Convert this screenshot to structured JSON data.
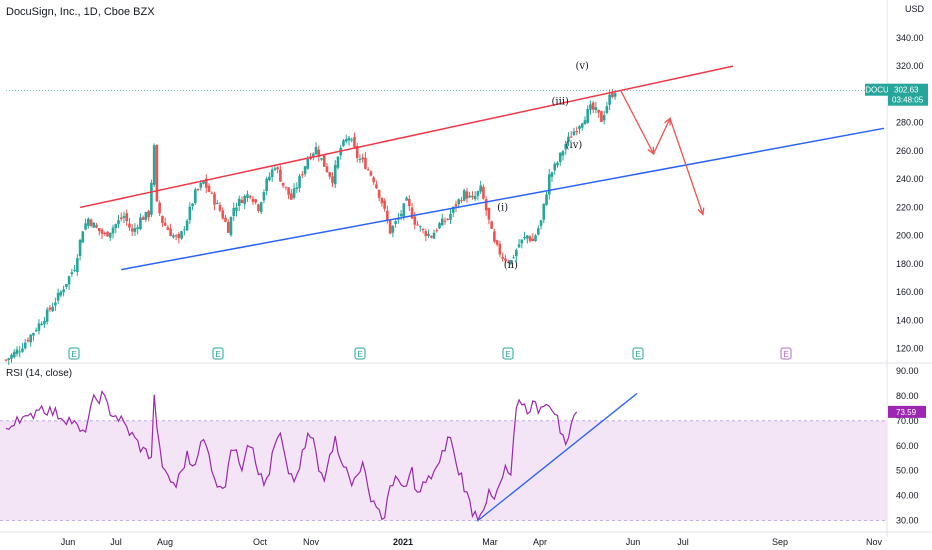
{
  "header": {
    "title": "DocuSign, Inc., 1D, Cboe BZX",
    "currency": "USD",
    "rsi_label": "RSI (14, close)"
  },
  "colors": {
    "up": "#26a69a",
    "down": "#ef5350",
    "upper_channel": "#f23645",
    "lower_channel": "#2962ff",
    "rsi_line": "#9c27b0",
    "rsi_band": "#f3e5f5",
    "price_badge": "#26a69a",
    "rsi_badge": "#9c27b0"
  },
  "chart_data": [
    {
      "type": "candlestick",
      "title": "DocuSign, Inc., 1D, Cboe BZX",
      "y_axis_ticks": [
        120,
        140,
        160,
        180,
        200,
        220,
        240,
        260,
        280,
        300,
        320,
        340
      ],
      "y_axis_tick_labels": [
        "120.00",
        "140.00",
        "160.00",
        "180.00",
        "200.00",
        "220.00",
        "240.00",
        "260.00",
        "280.00",
        "300.00",
        "320.00",
        "340.00"
      ],
      "ylim": [
        112,
        364
      ],
      "x_axis_ticks": [
        "Jun",
        "Jul",
        "Aug",
        "Oct",
        "Nov",
        "2021",
        "Mar",
        "Apr",
        "Jun",
        "Jul",
        "Sep",
        "Nov"
      ],
      "close_series": [
        [
          0,
          112
        ],
        [
          5,
          120
        ],
        [
          10,
          132
        ],
        [
          15,
          145
        ],
        [
          20,
          160
        ],
        [
          25,
          178
        ],
        [
          28,
          205
        ],
        [
          30,
          212
        ],
        [
          33,
          205
        ],
        [
          36,
          200
        ],
        [
          40,
          208
        ],
        [
          43,
          214
        ],
        [
          46,
          202
        ],
        [
          49,
          212
        ],
        [
          52,
          215
        ],
        [
          54,
          262
        ],
        [
          55,
          222
        ],
        [
          57,
          210
        ],
        [
          60,
          202
        ],
        [
          63,
          196
        ],
        [
          66,
          212
        ],
        [
          69,
          230
        ],
        [
          72,
          238
        ],
        [
          75,
          228
        ],
        [
          78,
          218
        ],
        [
          81,
          205
        ],
        [
          83,
          220
        ],
        [
          86,
          226
        ],
        [
          89,
          230
        ],
        [
          92,
          220
        ],
        [
          95,
          238
        ],
        [
          98,
          250
        ],
        [
          101,
          236
        ],
        [
          104,
          226
        ],
        [
          107,
          240
        ],
        [
          110,
          255
        ],
        [
          113,
          262
        ],
        [
          116,
          250
        ],
        [
          119,
          240
        ],
        [
          122,
          262
        ],
        [
          125,
          270
        ],
        [
          128,
          256
        ],
        [
          131,
          250
        ],
        [
          134,
          240
        ],
        [
          137,
          224
        ],
        [
          140,
          203
        ],
        [
          143,
          212
        ],
        [
          146,
          224
        ],
        [
          149,
          210
        ],
        [
          152,
          203
        ],
        [
          155,
          200
        ],
        [
          158,
          208
        ],
        [
          161,
          212
        ],
        [
          164,
          222
        ],
        [
          167,
          230
        ],
        [
          170,
          225
        ],
        [
          173,
          233
        ],
        [
          175,
          218
        ],
        [
          178,
          194
        ],
        [
          181,
          185
        ],
        [
          184,
          182
        ],
        [
          187,
          194
        ],
        [
          190,
          200
        ],
        [
          192,
          196
        ],
        [
          195,
          210
        ],
        [
          198,
          242
        ],
        [
          201,
          252
        ],
        [
          204,
          265
        ],
        [
          207,
          274
        ],
        [
          210,
          282
        ],
        [
          213,
          290
        ],
        [
          215,
          288
        ],
        [
          217,
          282
        ],
        [
          220,
          298
        ],
        [
          222,
          303
        ]
      ],
      "x_range": [
        0,
        320
      ],
      "last_price": "302.63",
      "ticker": "DOCU",
      "countdown": "03:48:05",
      "annotations": [
        "(i)",
        "(ii)",
        "(iii)",
        "(iv)",
        "(v)"
      ],
      "earnings_markers": [
        "E",
        "E",
        "E",
        "E",
        "E",
        "E"
      ],
      "lines": [
        {
          "name": "upper channel",
          "from": [
            27,
            220
          ],
          "to": [
            265,
            320
          ]
        },
        {
          "name": "lower channel",
          "from": [
            42,
            176
          ],
          "to": [
            320,
            276
          ]
        }
      ]
    },
    {
      "type": "line",
      "title": "RSI (14, close)",
      "y_axis_ticks": [
        30,
        40,
        50,
        60,
        70,
        80,
        90
      ],
      "y_axis_tick_labels": [
        "30.00",
        "40.00",
        "50.00",
        "60.00",
        "70.00",
        "80.00",
        "90.00"
      ],
      "ylim": [
        27,
        92
      ],
      "band": [
        30,
        70
      ],
      "last_value": "73.59",
      "values": [
        [
          0,
          65
        ],
        [
          4,
          72
        ],
        [
          8,
          70
        ],
        [
          12,
          76
        ],
        [
          16,
          74
        ],
        [
          20,
          72
        ],
        [
          24,
          70
        ],
        [
          28,
          64
        ],
        [
          32,
          78
        ],
        [
          35,
          80
        ],
        [
          38,
          74
        ],
        [
          42,
          70
        ],
        [
          46,
          64
        ],
        [
          50,
          58
        ],
        [
          53,
          56
        ],
        [
          54,
          79
        ],
        [
          56,
          58
        ],
        [
          58,
          48
        ],
        [
          60,
          46
        ],
        [
          62,
          44
        ],
        [
          64,
          50
        ],
        [
          66,
          56
        ],
        [
          68,
          52
        ],
        [
          70,
          58
        ],
        [
          72,
          62
        ],
        [
          74,
          56
        ],
        [
          76,
          48
        ],
        [
          78,
          42
        ],
        [
          80,
          46
        ],
        [
          82,
          60
        ],
        [
          84,
          56
        ],
        [
          86,
          52
        ],
        [
          88,
          62
        ],
        [
          90,
          60
        ],
        [
          92,
          50
        ],
        [
          94,
          44
        ],
        [
          96,
          50
        ],
        [
          98,
          60
        ],
        [
          100,
          64
        ],
        [
          102,
          52
        ],
        [
          104,
          48
        ],
        [
          106,
          46
        ],
        [
          108,
          56
        ],
        [
          110,
          64
        ],
        [
          112,
          62
        ],
        [
          114,
          50
        ],
        [
          116,
          48
        ],
        [
          118,
          58
        ],
        [
          120,
          62
        ],
        [
          122,
          56
        ],
        [
          124,
          50
        ],
        [
          126,
          44
        ],
        [
          128,
          50
        ],
        [
          130,
          52
        ],
        [
          132,
          42
        ],
        [
          134,
          38
        ],
        [
          136,
          34
        ],
        [
          138,
          30
        ],
        [
          140,
          44
        ],
        [
          142,
          48
        ],
        [
          144,
          42
        ],
        [
          146,
          44
        ],
        [
          148,
          50
        ],
        [
          150,
          40
        ],
        [
          152,
          44
        ],
        [
          154,
          46
        ],
        [
          156,
          50
        ],
        [
          158,
          52
        ],
        [
          160,
          60
        ],
        [
          162,
          64
        ],
        [
          164,
          52
        ],
        [
          166,
          48
        ],
        [
          168,
          40
        ],
        [
          170,
          34
        ],
        [
          172,
          32
        ],
        [
          174,
          36
        ],
        [
          176,
          40
        ],
        [
          178,
          38
        ],
        [
          180,
          44
        ],
        [
          182,
          50
        ],
        [
          184,
          48
        ],
        [
          186,
          74
        ],
        [
          188,
          78
        ],
        [
          190,
          74
        ],
        [
          192,
          77
        ],
        [
          194,
          75
        ],
        [
          196,
          78
        ],
        [
          198,
          74
        ],
        [
          200,
          75
        ],
        [
          202,
          66
        ],
        [
          204,
          60
        ],
        [
          206,
          70
        ],
        [
          208,
          73.59
        ]
      ],
      "x_range": [
        0,
        320
      ],
      "lines": [
        {
          "name": "rsi trendline",
          "from": [
            172,
            30
          ],
          "to": [
            230,
            81
          ]
        }
      ]
    }
  ]
}
